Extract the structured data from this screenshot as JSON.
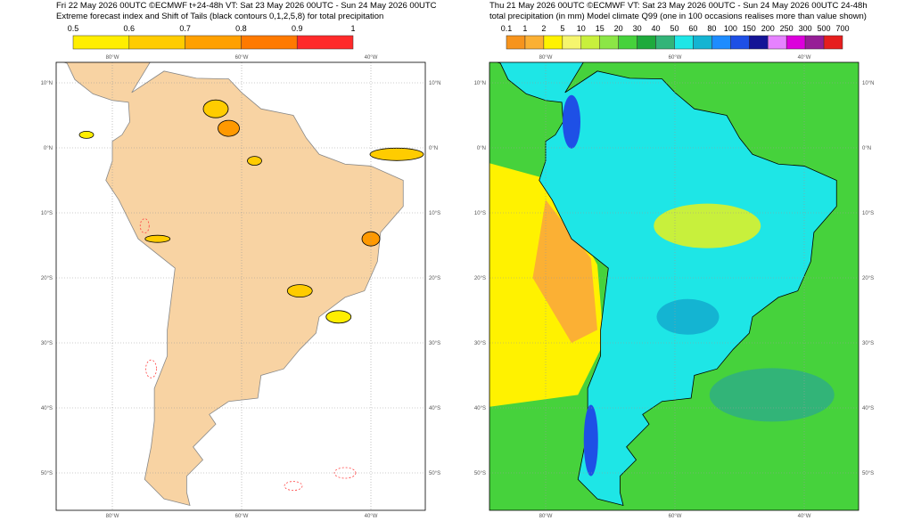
{
  "left_panel": {
    "header": [
      "Fri 22 May 2026 00UTC ©ECMWF t+24-48h  VT: Sat 23 May 2026 00UTC - Sun 24 May 2026 00UTC",
      "Extreme forecast index and Shift of Tails (black contours 0,1,2,5,8) for total precipitation"
    ],
    "colorbar": {
      "labels": [
        0.5,
        0.6,
        0.7,
        0.8,
        0.9,
        1
      ],
      "colors": [
        "#ffee00",
        "#ffcc00",
        "#ffa000",
        "#ff7a00",
        "#ff2a2a"
      ]
    },
    "lon_labels": [
      "80°W",
      "60°W",
      "40°W"
    ],
    "lat_labels": [
      "10°N",
      "0°N",
      "10°S",
      "20°S",
      "30°S",
      "40°S",
      "50°S"
    ]
  },
  "right_panel": {
    "header": [
      "Thu 21 May 2026 00UTC ©ECMWF VT: Sat 23 May 2026 00UTC - Sun 24 May 2026 00UTC   24-48h",
      "total precipitation (in mm)  Model climate Q99 (one in 100 occasions realises more than value shown)"
    ],
    "colorbar": {
      "labels": [
        0.1,
        1,
        2,
        5,
        10,
        15,
        20,
        30,
        40,
        50,
        60,
        80,
        100,
        150,
        200,
        250,
        300,
        500,
        700
      ],
      "colors": [
        "#f7941d",
        "#fbb034",
        "#fff200",
        "#f5f56e",
        "#c8f03c",
        "#8ce646",
        "#46d23c",
        "#1eaa3c",
        "#32b478",
        "#1ee6e6",
        "#14b4d2",
        "#1e8cff",
        "#1e50e6",
        "#141496",
        "#e682ff",
        "#dc00dc",
        "#961e96",
        "#e61e1e"
      ]
    },
    "lon_labels": [
      "80°W",
      "60°W",
      "40°W"
    ],
    "lat_labels": [
      "10°N",
      "0°N",
      "10°S",
      "20°S",
      "30°S",
      "40°S",
      "50°S"
    ]
  }
}
